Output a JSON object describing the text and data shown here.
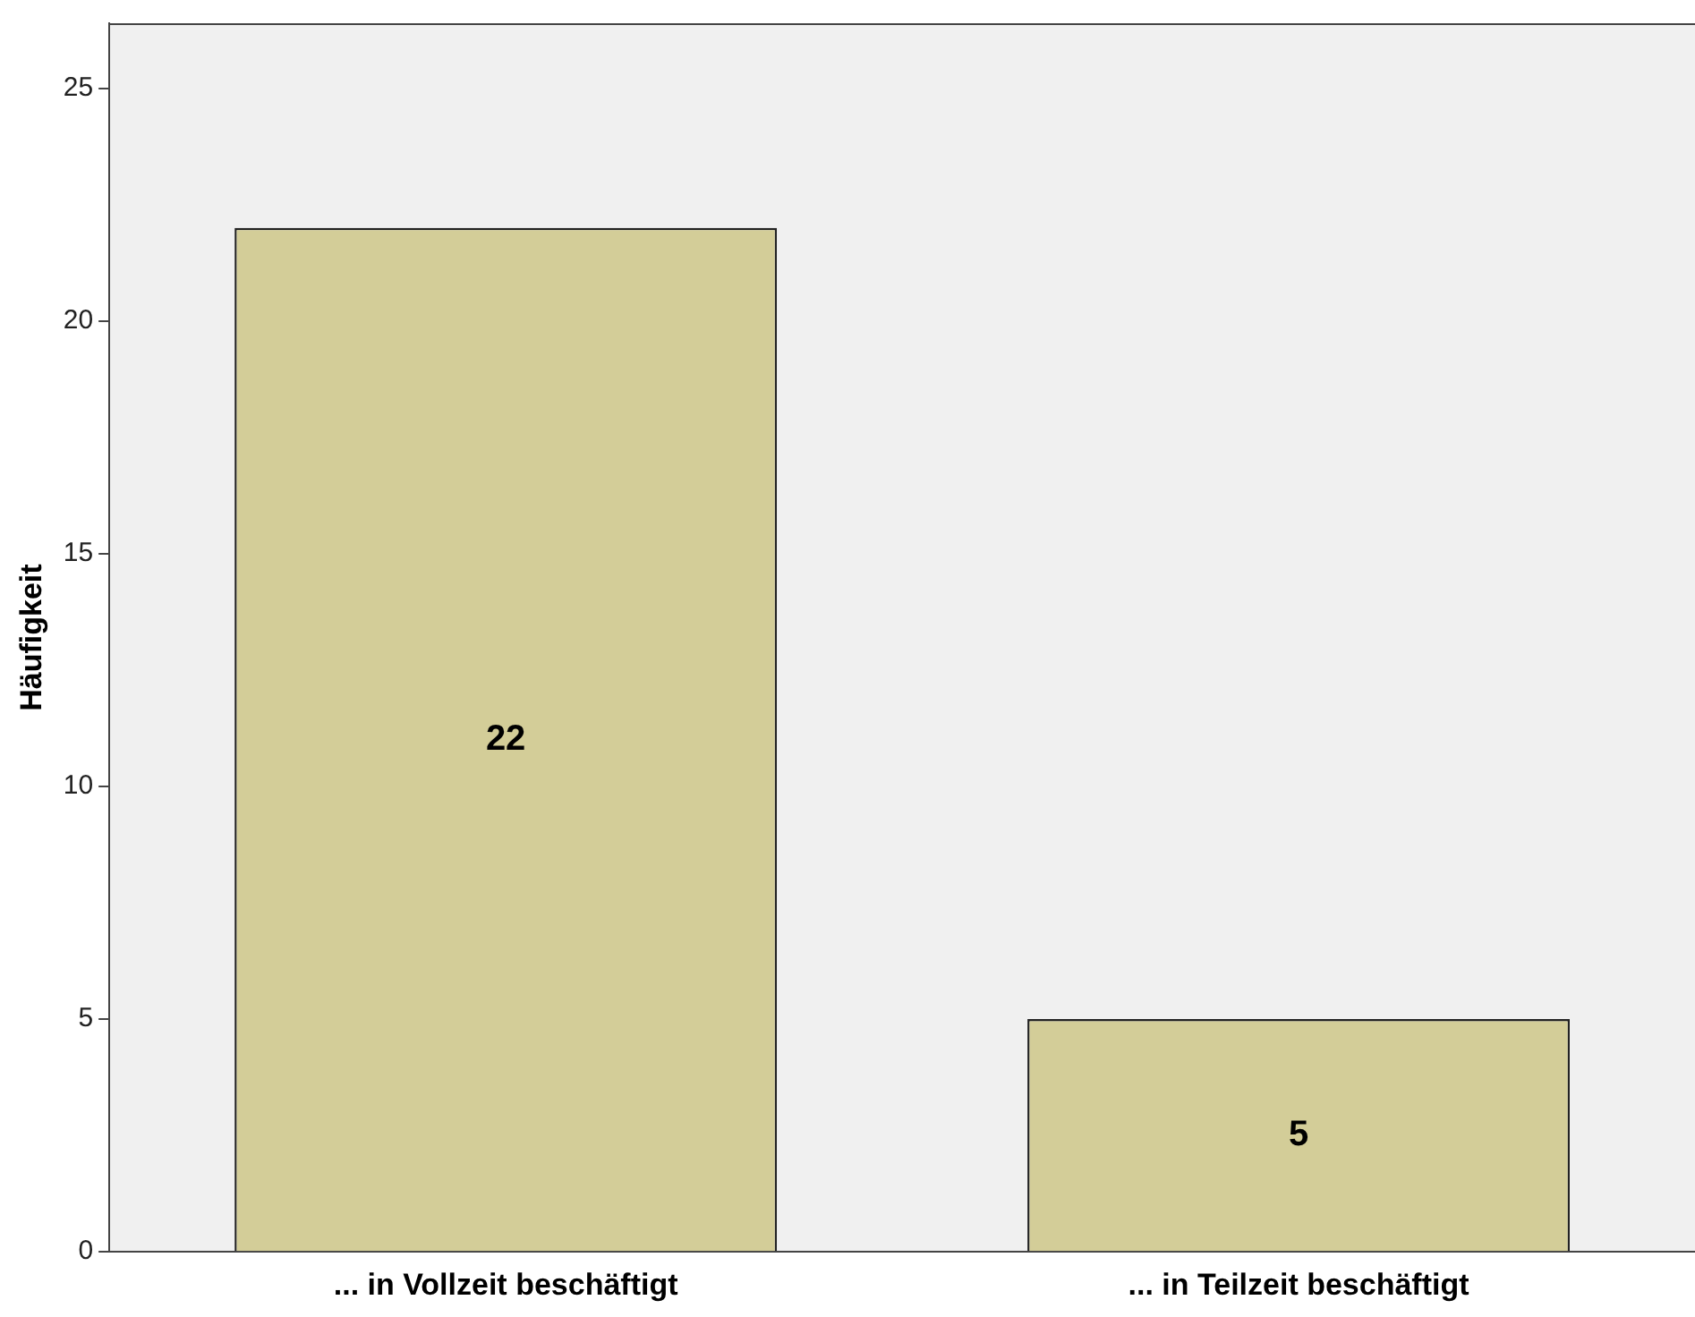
{
  "chart_data": {
    "type": "bar",
    "ylabel": "Häufigkeit",
    "categories": [
      "... in Vollzeit beschäftigt",
      "... in Teilzeit beschäftigt"
    ],
    "values": [
      22,
      5
    ],
    "color": "#d3cd98",
    "ylim": [
      0,
      26.4
    ],
    "yticks": [
      0,
      5,
      10,
      15,
      20,
      25
    ],
    "grid": false,
    "legend": false,
    "data_labels": true
  }
}
